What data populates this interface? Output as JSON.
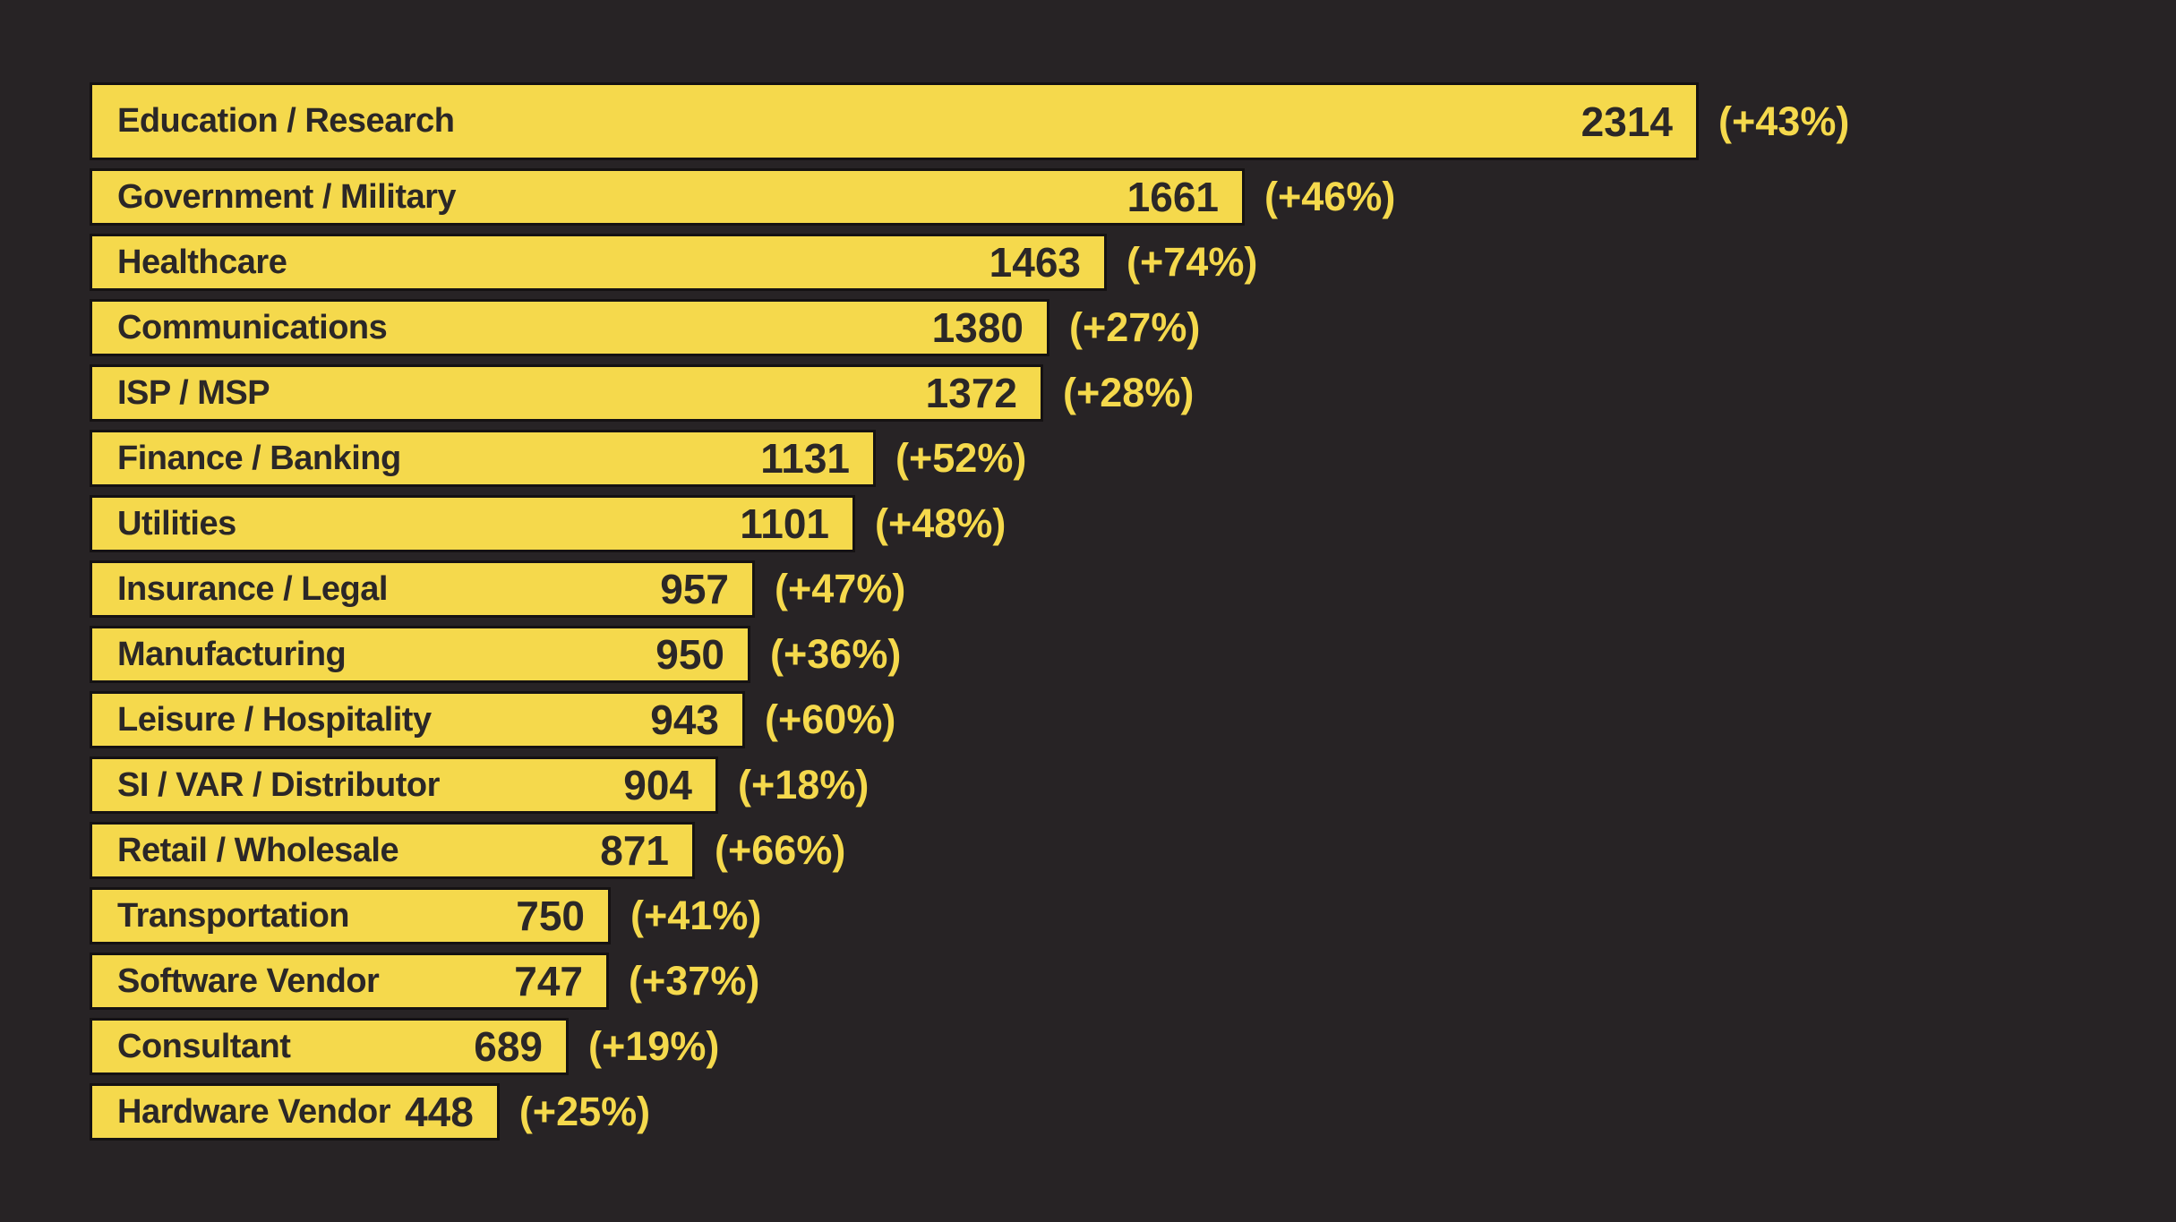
{
  "colors": {
    "background": "#272325",
    "bar_fill": "#f5d94c",
    "bar_border": "#151213",
    "text_on_bar": "#2b2727",
    "percent_text": "#f5d94c"
  },
  "chart_data": {
    "type": "bar",
    "orientation": "horizontal",
    "title": "",
    "xlabel": "",
    "ylabel": "",
    "grid": false,
    "legend": "none",
    "xlim": [
      0,
      2314
    ],
    "categories": [
      "Education / Research",
      "Government / Military",
      "Healthcare",
      "Communications",
      "ISP / MSP",
      "Finance / Banking",
      "Utilities",
      "Insurance / Legal",
      "Manufacturing",
      "Leisure / Hospitality",
      "SI / VAR / Distributor",
      "Retail / Wholesale",
      "Transportation",
      "Software Vendor",
      "Consultant",
      "Hardware Vendor"
    ],
    "values": [
      2314,
      1661,
      1463,
      1380,
      1372,
      1131,
      1101,
      957,
      950,
      943,
      904,
      871,
      750,
      747,
      689,
      448
    ],
    "change_labels": [
      "(+43%)",
      "(+46%)",
      "(+74%)",
      "(+27%)",
      "(+28%)",
      "(+52%)",
      "(+48%)",
      "(+47%)",
      "(+36%)",
      "(+60%)",
      "(+18%)",
      "(+66%)",
      "(+41%)",
      "(+37%)",
      "(+19%)",
      "(+25%)"
    ],
    "change_pct_values": [
      43,
      46,
      74,
      27,
      28,
      52,
      48,
      47,
      36,
      60,
      18,
      66,
      41,
      37,
      19,
      25
    ]
  }
}
